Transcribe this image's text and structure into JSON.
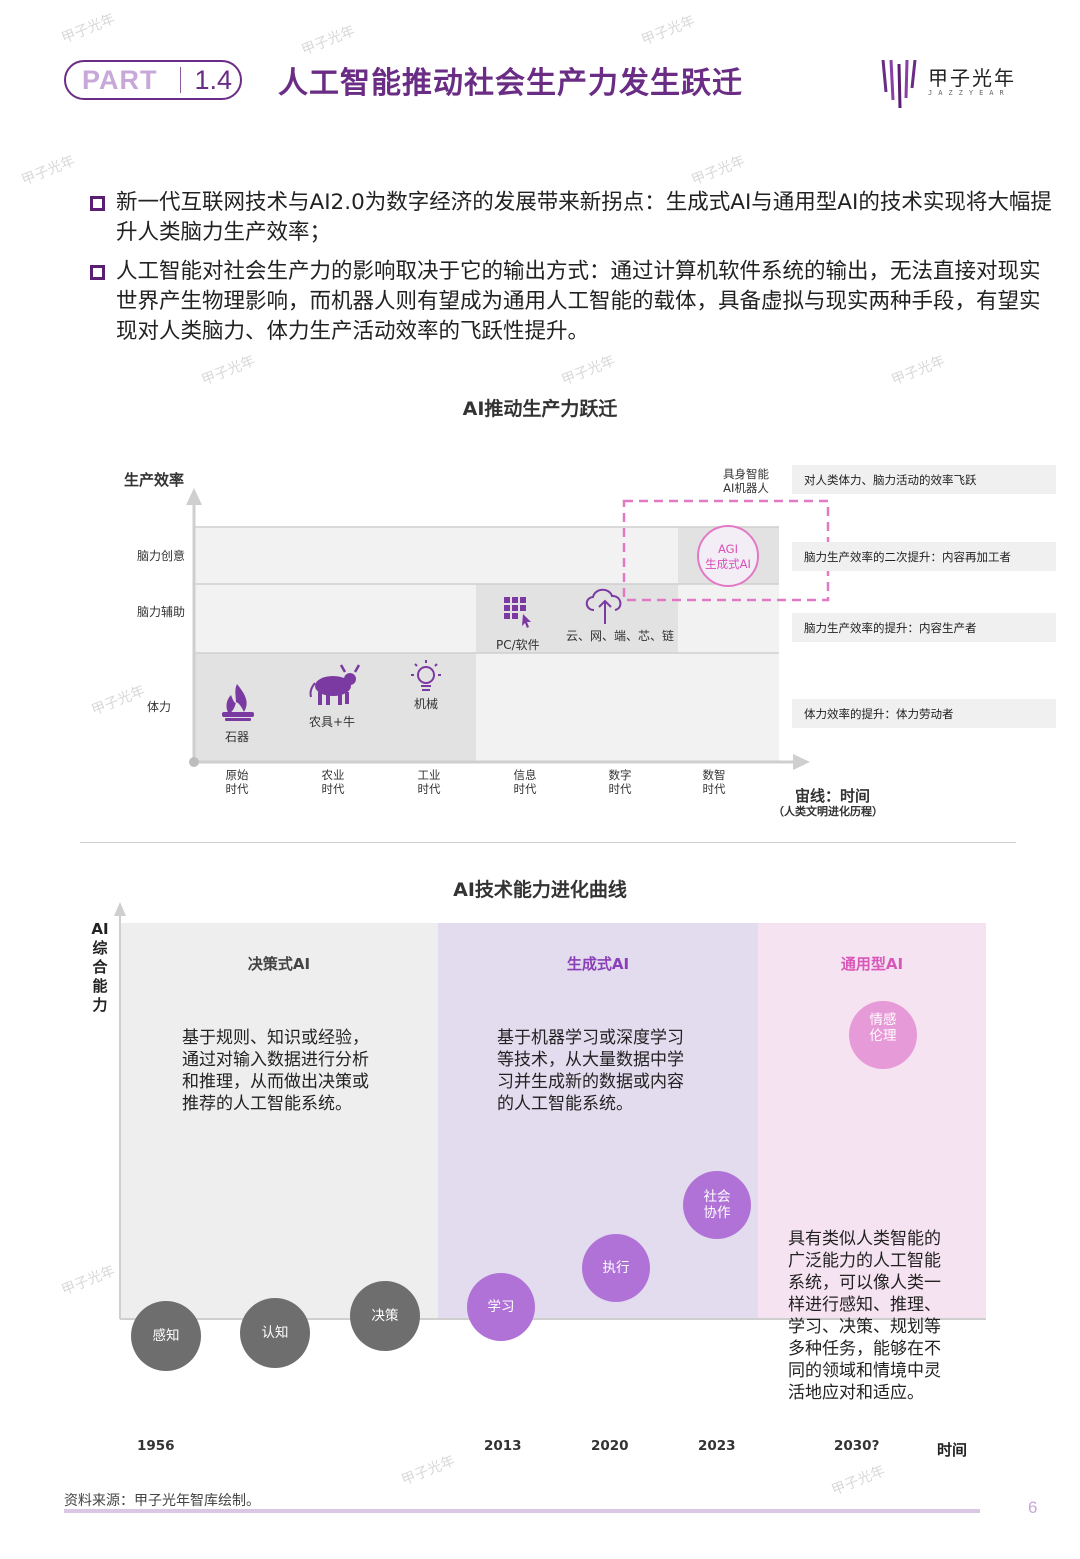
{
  "header": {
    "part_word": "PART",
    "part_number": "1.4",
    "title": "人工智能推动社会生产力发生跃迁",
    "logo_text": "甲子光年",
    "logo_sub": "JAZZYEAR"
  },
  "bullets": [
    "新一代互联网技术与AI2.0为数字经济的发展带来新拐点：生成式AI与通用型AI的技术实现将大幅提升人类脑力生产效率；",
    "人工智能对社会生产力的影响取决于它的输出方式：通过计算机软件系统的输出，无法直接对现实世界产生物理影响，而机器人则有望成为通用人工智能的载体，具备虚拟与现实两种手段，有望实现对人类脑力、体力生产活动效率的飞跃性提升。"
  ],
  "chart1": {
    "title": "AI推动生产力跃迁",
    "y_axis_label": "生产效率",
    "x_axis_label": "宙线：时间",
    "x_axis_sub": "（人类文明进化历程）",
    "levels": [
      "脑力创意",
      "脑力辅助",
      "体力"
    ],
    "eras": [
      [
        "原始",
        "时代"
      ],
      [
        "农业",
        "时代"
      ],
      [
        "工业",
        "时代"
      ],
      [
        "信息",
        "时代"
      ],
      [
        "数字",
        "时代"
      ],
      [
        "数智",
        "时代"
      ]
    ],
    "items": {
      "stone": "石器",
      "farm": "农具+牛",
      "machine": "机械",
      "pc": "PC/软件",
      "cloud": "云、网、端、芯、链",
      "agi_top": "AGI",
      "agi_bottom": "生成式AI",
      "embodied_top": "具身智能",
      "embodied_bottom": "AI机器人"
    },
    "right_labels": [
      "对人类体力、脑力活动的效率飞跃",
      "脑力生产效率的二次提升：内容再加工者",
      "脑力生产效率的提升：内容生产者",
      "体力效率的提升：体力劳动者"
    ]
  },
  "chart2": {
    "title": "AI技术能力进化曲线",
    "y_axis_label": [
      "AI",
      "综",
      "合",
      "能",
      "力"
    ],
    "x_axis_label": "时间",
    "zones": [
      {
        "name": "决策式AI",
        "desc": [
          "基于规则、知识或经验，",
          "通过对输入数据进行分析",
          "和推理，从而做出决策或",
          "推荐的人工智能系统。"
        ]
      },
      {
        "name": "生成式AI",
        "desc": [
          "基于机器学习或深度学习",
          "等技术，从大量数据中学",
          "习并生成新的数据或内容",
          "的人工智能系统。"
        ]
      },
      {
        "name": "通用型AI",
        "desc": [
          "具有类似人类智能的",
          "广泛能力的人工智能",
          "系统，可以像人类一",
          "样进行感知、推理、",
          "学习、决策、规划等",
          "多种任务，能够在不",
          "同的领域和情境中灵",
          "活地应对和适应。"
        ]
      }
    ],
    "nodes": [
      [
        "感知"
      ],
      [
        "认知"
      ],
      [
        "决策"
      ],
      [
        "学习"
      ],
      [
        "执行"
      ],
      [
        "社会",
        "协作"
      ],
      [
        "情感",
        "伦理"
      ]
    ],
    "years": [
      "1956",
      "2013",
      "2020",
      "2023",
      "2030?"
    ],
    "colors": {
      "zone1": "#eeeeee",
      "zone2": "#e3dbee",
      "zone3": "#f6e3f1",
      "grey_node": "#6e6e6e",
      "purple_node": "#b072d6",
      "pink_node": "#e79ad8",
      "curve": "#5a1f74"
    }
  },
  "footer": {
    "source": "资料来源：甲子光年智库绘制。",
    "page": "6"
  }
}
